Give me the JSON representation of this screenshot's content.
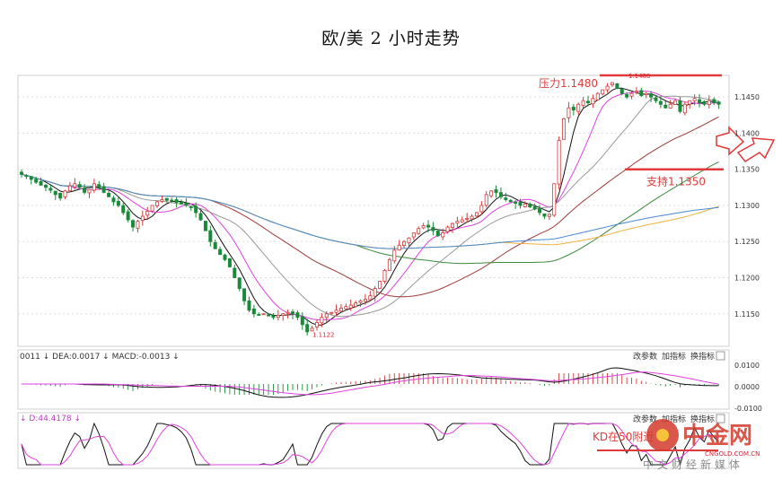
{
  "title": "欧/美 2 小时走势",
  "chart_data": {
    "type": "candlestick",
    "main_panel": {
      "y_ticks": [
        "1.1450",
        "1.1400",
        "1.1350",
        "1.1300",
        "1.1250",
        "1.1200",
        "1.1150"
      ],
      "ylim": [
        1.1105,
        1.148
      ],
      "annotations": {
        "resistance_label": "压力1.1480",
        "resistance_value": 1.148,
        "support_label": "支持1.1350",
        "support_value": 1.135,
        "high_marker": "1.1480",
        "low_marker": "1.1122",
        "low_value": 1.1122
      },
      "close": [
        1.1343,
        1.134,
        1.1336,
        1.1332,
        1.1328,
        1.1325,
        1.1321,
        1.1315,
        1.131,
        1.132,
        1.1327,
        1.133,
        1.1325,
        1.1318,
        1.1322,
        1.133,
        1.1325,
        1.1318,
        1.1312,
        1.1305,
        1.13,
        1.129,
        1.128,
        1.127,
        1.1278,
        1.1285,
        1.1292,
        1.13,
        1.1305,
        1.1308,
        1.1307,
        1.1306,
        1.1304,
        1.1302,
        1.13,
        1.1298,
        1.129,
        1.128,
        1.1265,
        1.125,
        1.124,
        1.1232,
        1.1225,
        1.1215,
        1.12,
        1.1185,
        1.1168,
        1.1155,
        1.115,
        1.1148,
        1.115,
        1.1147,
        1.1145,
        1.1148,
        1.115,
        1.1152,
        1.115,
        1.1145,
        1.1135,
        1.1125,
        1.113,
        1.1138,
        1.1145,
        1.115,
        1.1152,
        1.1155,
        1.1158,
        1.116,
        1.1162,
        1.1165,
        1.1168,
        1.117,
        1.1175,
        1.1185,
        1.1195,
        1.121,
        1.1225,
        1.1238,
        1.1245,
        1.125,
        1.1255,
        1.1262,
        1.1268,
        1.1272,
        1.127,
        1.1265,
        1.1258,
        1.1262,
        1.127,
        1.1275,
        1.1278,
        1.128,
        1.1282,
        1.1285,
        1.129,
        1.13,
        1.1315,
        1.132,
        1.1318,
        1.1312,
        1.1308,
        1.1305,
        1.1303,
        1.13,
        1.1302,
        1.1298,
        1.1295,
        1.129,
        1.1285,
        1.1288,
        1.133,
        1.139,
        1.142,
        1.1435,
        1.1432,
        1.144,
        1.1445,
        1.1442,
        1.1448,
        1.1455,
        1.146,
        1.1465,
        1.147,
        1.1462,
        1.1455,
        1.145,
        1.1455,
        1.1458,
        1.1452,
        1.1455,
        1.145,
        1.1445,
        1.144,
        1.1435,
        1.144,
        1.1445,
        1.143,
        1.144,
        1.1445,
        1.1448,
        1.1442,
        1.144,
        1.1445,
        1.1442,
        1.144
      ]
    },
    "macd_panel": {
      "header": "0011 ↓ DEA:0.0017 ↓ MACD:-0.0013 ↓",
      "buttons": [
        "改参数",
        "加指标",
        "换指标"
      ],
      "y_ticks": [
        "0.0100",
        "0.0000",
        "-0.0100"
      ]
    },
    "kd_panel": {
      "header": "↓ D:44.4178 ↓",
      "buttons": [
        "改参数",
        "加指标",
        "换指标"
      ],
      "annotation": "KD在50附近"
    },
    "colors": {
      "up": "#d23a3a",
      "down": "#1a8a3a",
      "ma_fast": "#111111",
      "ma_mid": "#e040e0",
      "ma_slow": "#999999",
      "ma_dark": "#a03a3a",
      "ma_green": "#3a8a3a",
      "ma_orange": "#f0b040",
      "ma_blue": "#4a8ad0",
      "annotation": "#e03a3a"
    }
  },
  "watermark": {
    "brand": "中金网",
    "site": "CNGOLD.COM.CN",
    "tagline": "中文财经新媒体"
  }
}
